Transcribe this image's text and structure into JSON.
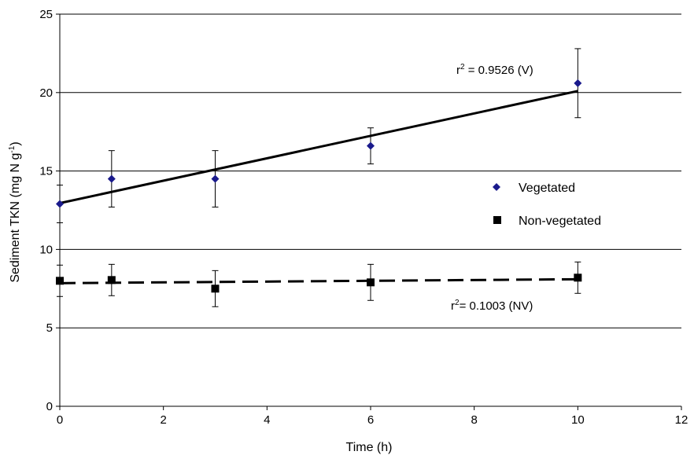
{
  "chart_data": {
    "type": "scatter",
    "title": "",
    "xlabel": "Time (h)",
    "ylabel_main": "Sediment TKN (mg N g",
    "ylabel_sup": "-1",
    "ylabel_close": ")",
    "xlim": [
      0,
      12
    ],
    "ylim": [
      0,
      25
    ],
    "xticks": [
      0,
      2,
      4,
      6,
      8,
      10,
      12
    ],
    "yticks": [
      0,
      5,
      10,
      15,
      20,
      25
    ],
    "grid": "horizontal",
    "legend_position": "right",
    "series": [
      {
        "name": "Vegetated",
        "marker": "diamond",
        "color": "#1a1a8c",
        "x": [
          0,
          1,
          3,
          6,
          10
        ],
        "y": [
          12.9,
          14.5,
          14.5,
          16.6,
          20.6
        ],
        "err": [
          1.2,
          1.8,
          1.8,
          1.15,
          2.2
        ],
        "trend": {
          "style": "solid",
          "x": [
            0,
            10
          ],
          "y": [
            12.95,
            20.1
          ]
        }
      },
      {
        "name": "Non-vegetated",
        "marker": "square",
        "color": "#000000",
        "x": [
          0,
          1,
          3,
          6,
          10
        ],
        "y": [
          8.0,
          8.05,
          7.5,
          7.9,
          8.2
        ],
        "err": [
          1.0,
          1.0,
          1.15,
          1.15,
          1.0
        ],
        "trend": {
          "style": "dashed",
          "x": [
            0,
            10
          ],
          "y": [
            7.85,
            8.1
          ]
        }
      }
    ],
    "annotations": {
      "veg_r2": {
        "pre": "r",
        "sup": "2",
        "post": " = 0.9526 (V)"
      },
      "nonveg_r2": {
        "pre": "r",
        "sup": "2",
        "post": "= 0.1003 (NV)"
      }
    }
  }
}
